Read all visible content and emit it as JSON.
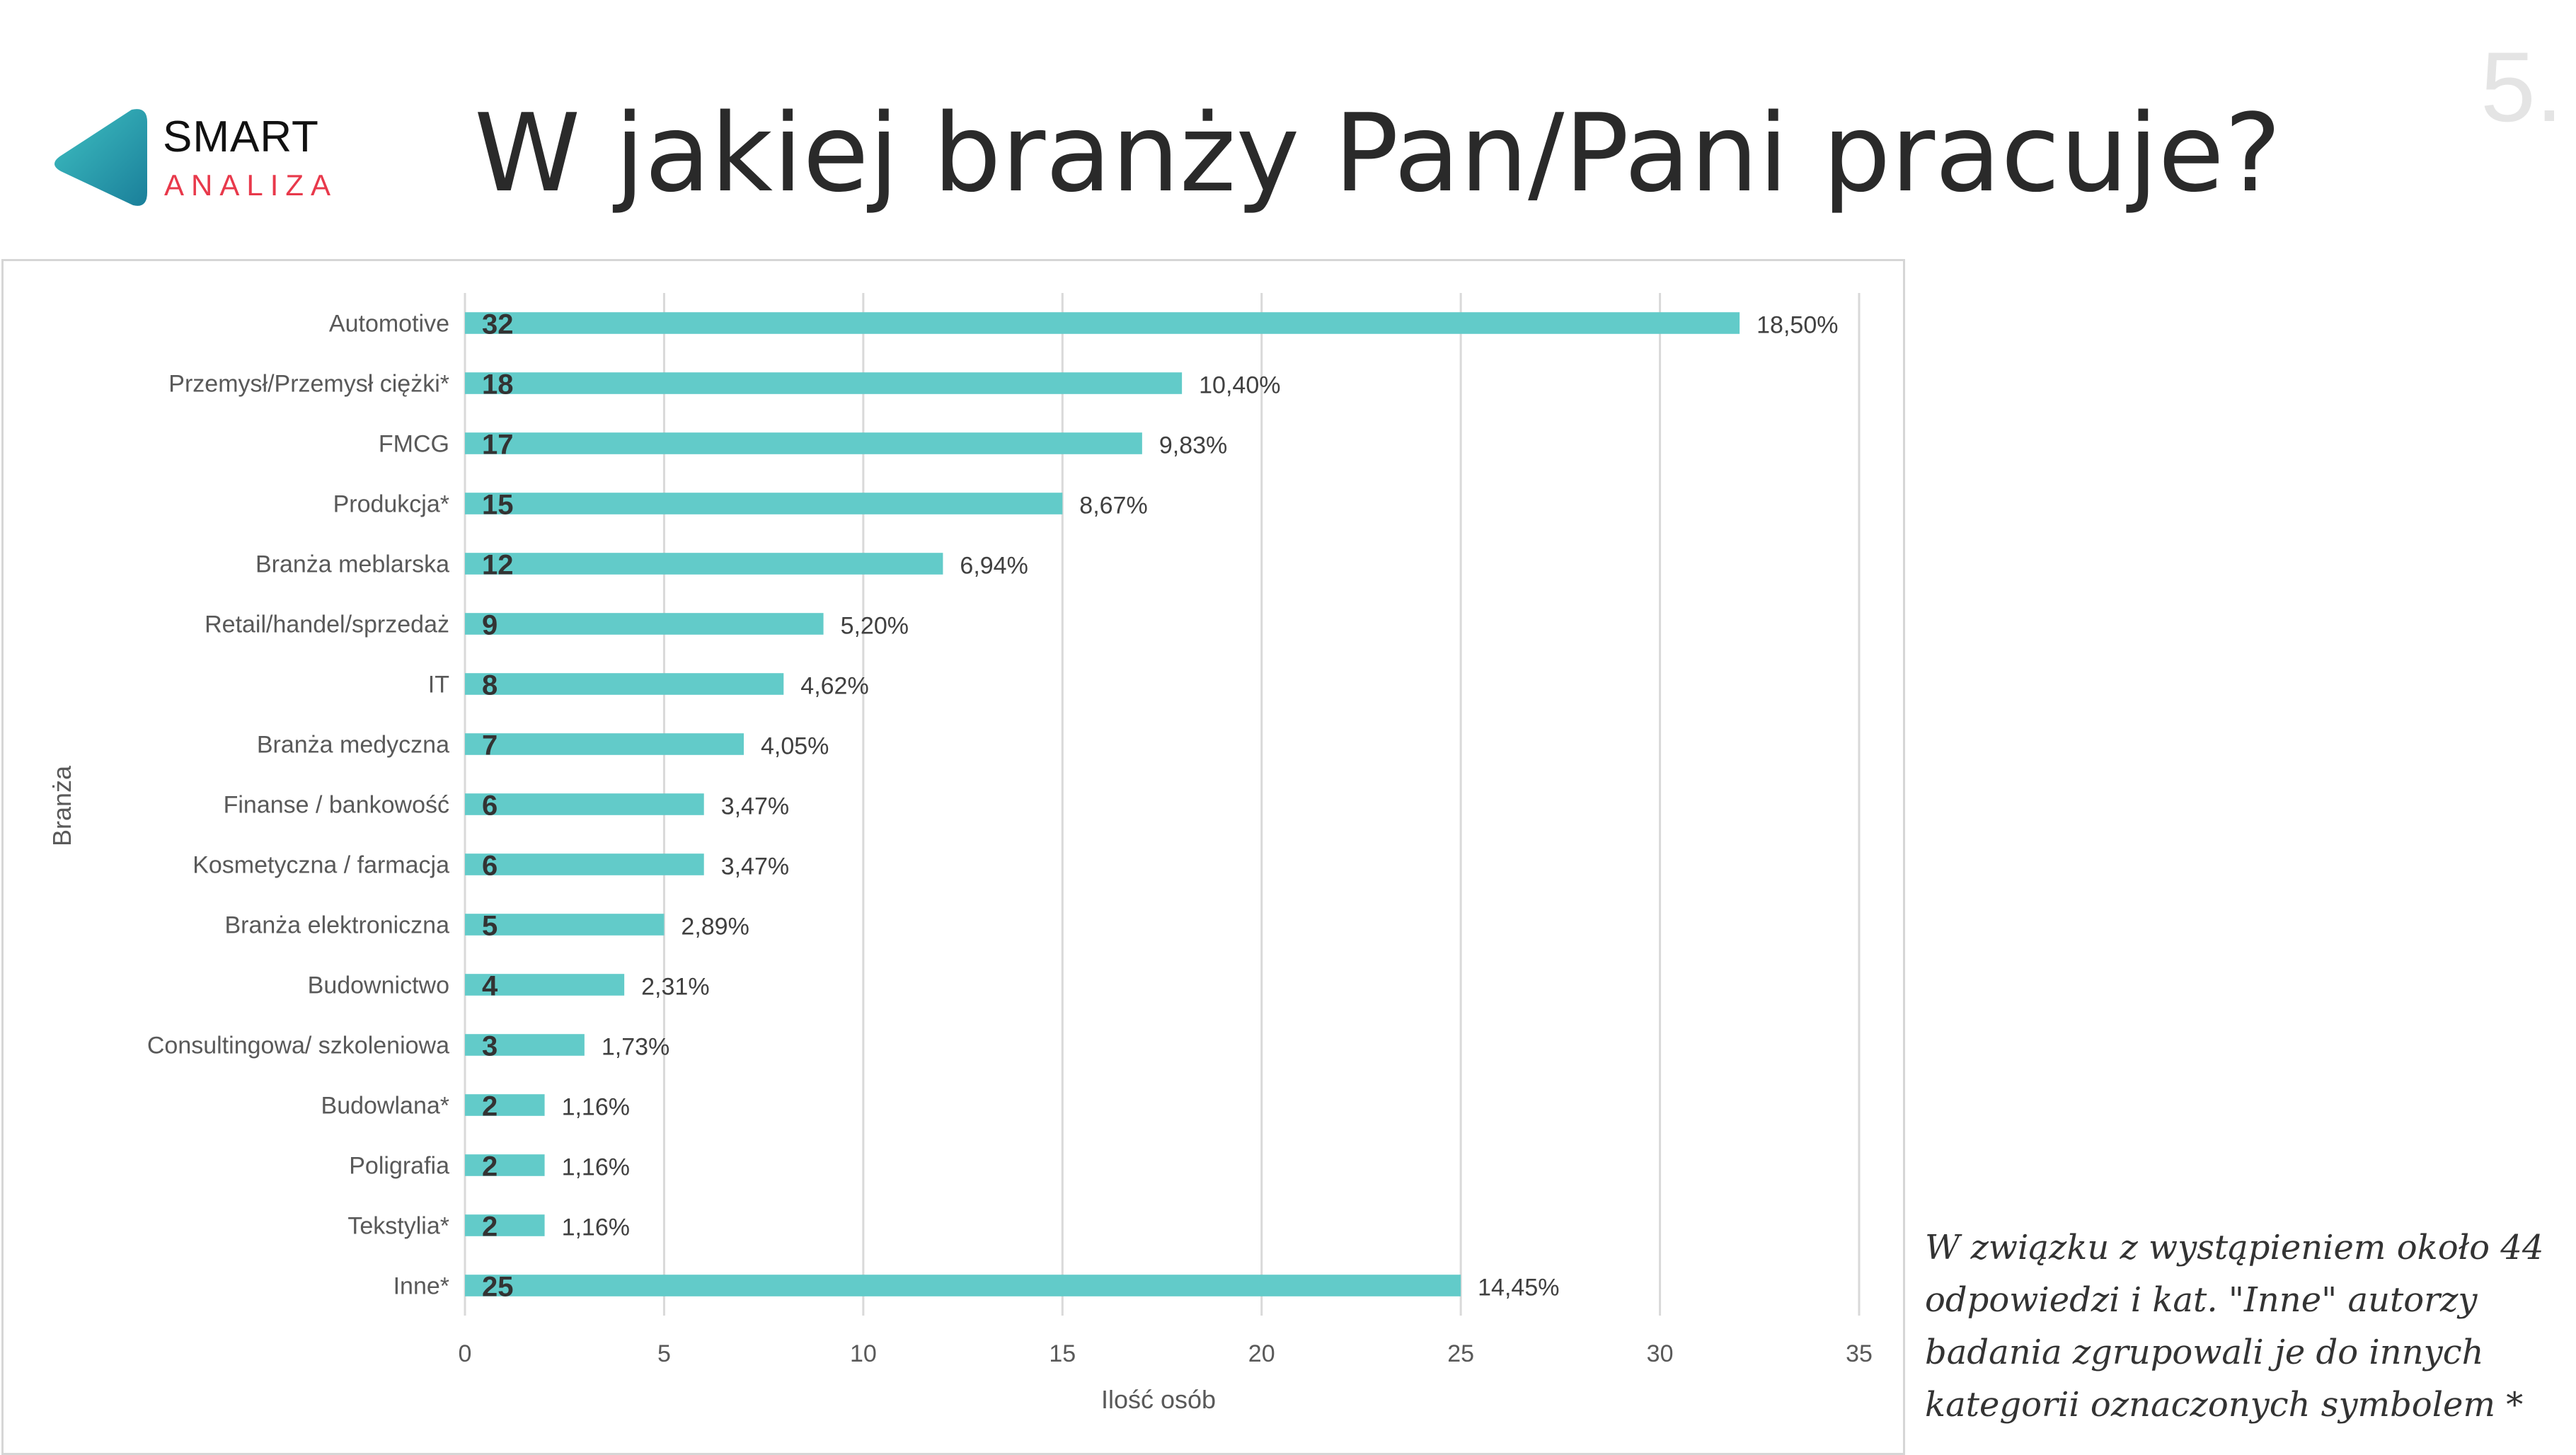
{
  "brand": {
    "line1": "SMART",
    "line2": "ANALIZA",
    "accent_color": "#e8394b",
    "mark_color": "#2aa3b3"
  },
  "title": "W jakiej branży Pan/Pani pracuje?",
  "page_number": "5.",
  "note": "W związku z wystąpieniem około 44 odpowiedzi i kat. \"Inne\" autorzy badania zgrupowali je do innych kategorii oznaczonych symbolem *",
  "chart_data": {
    "type": "bar",
    "orientation": "horizontal",
    "categories": [
      "Automotive",
      "Przemysł/Przemysł ciężki*",
      "FMCG",
      "Produkcja*",
      "Branża meblarska",
      "Retail/handel/sprzedaż",
      "IT",
      "Branża medyczna",
      "Finanse / bankowość",
      "Kosmetyczna / farmacja",
      "Branża elektroniczna",
      "Budownictwo",
      "Consultingowa/ szkoleniowa",
      "Budowlana*",
      "Poligrafia",
      "Tekstylia*",
      "Inne*"
    ],
    "values": [
      32,
      18,
      17,
      15,
      12,
      9,
      8,
      7,
      6,
      6,
      5,
      4,
      3,
      2,
      2,
      2,
      25
    ],
    "value_labels": [
      "32",
      "18",
      "17",
      "15",
      "12",
      "9",
      "8",
      "7",
      "6",
      "6",
      "5",
      "4",
      "3",
      "2",
      "2",
      "2",
      "25"
    ],
    "percent_labels": [
      "18,50%",
      "10,40%",
      "9,83%",
      "8,67%",
      "6,94%",
      "5,20%",
      "4,62%",
      "4,05%",
      "3,47%",
      "3,47%",
      "2,89%",
      "2,31%",
      "1,73%",
      "1,16%",
      "1,16%",
      "1,16%",
      "14,45%"
    ],
    "xlabel": "Ilość osób",
    "ylabel": "Branża",
    "xlim": [
      0,
      35
    ],
    "xticks": [
      "0",
      "5",
      "10",
      "15",
      "20",
      "25",
      "30",
      "35"
    ],
    "grid": true,
    "bar_color": "#62cbc9"
  }
}
